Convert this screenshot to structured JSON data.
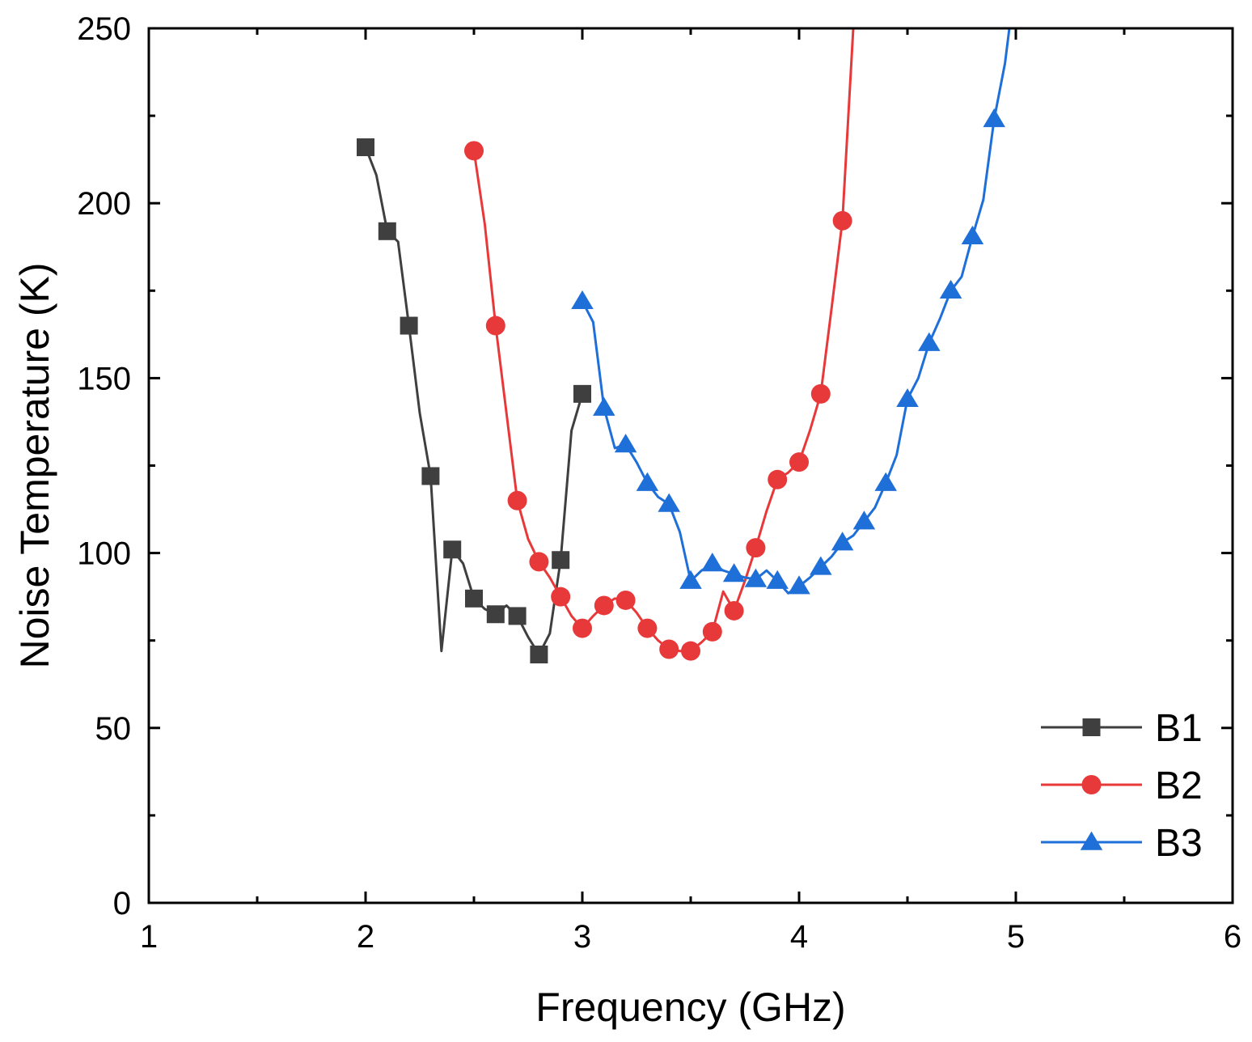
{
  "chart_data": {
    "type": "line",
    "title": "",
    "xlabel": "Frequency (GHz)",
    "ylabel": "Noise Temperature (K)",
    "xlim": [
      1,
      6
    ],
    "ylim": [
      0,
      250
    ],
    "xticks": [
      1,
      2,
      3,
      4,
      5,
      6
    ],
    "xtick_labels": [
      "1",
      "2",
      "3",
      "4",
      "5",
      "6"
    ],
    "yticks": [
      0,
      50,
      100,
      150,
      200,
      250
    ],
    "ytick_labels": [
      "0",
      "50",
      "100",
      "150",
      "200",
      "250"
    ],
    "grid": false,
    "legend_position": "bottom-right",
    "series": [
      {
        "name": "B1",
        "color": "#3f3f3f",
        "marker": "square",
        "markers": {
          "x": [
            2.0,
            2.1,
            2.2,
            2.3,
            2.4,
            2.5,
            2.6,
            2.7,
            2.8,
            2.9,
            3.0
          ],
          "y": [
            216,
            192,
            165,
            122,
            101,
            87,
            82.5,
            82,
            71,
            98,
            145.5
          ]
        },
        "line": {
          "x": [
            2.0,
            2.05,
            2.1,
            2.15,
            2.2,
            2.25,
            2.3,
            2.35,
            2.4,
            2.45,
            2.5,
            2.55,
            2.6,
            2.65,
            2.7,
            2.75,
            2.8,
            2.85,
            2.9,
            2.95,
            3.0
          ],
          "y": [
            216,
            208,
            192,
            189,
            165,
            140,
            122,
            72,
            101,
            97,
            87,
            84,
            82.5,
            85,
            82,
            76,
            71,
            77,
            98,
            135,
            145.5
          ]
        }
      },
      {
        "name": "B2",
        "color": "#e8393a",
        "marker": "circle",
        "markers": {
          "x": [
            2.5,
            2.6,
            2.7,
            2.8,
            2.9,
            3.0,
            3.1,
            3.2,
            3.3,
            3.4,
            3.5,
            3.6,
            3.7,
            3.8,
            3.9,
            4.0,
            4.1,
            4.2
          ],
          "y": [
            215,
            165,
            115,
            97.5,
            87.5,
            78.5,
            85,
            86.5,
            78.5,
            72.5,
            72,
            77.5,
            83.5,
            101.5,
            121,
            126,
            145.5,
            195
          ]
        },
        "line": {
          "x": [
            2.5,
            2.55,
            2.6,
            2.65,
            2.7,
            2.75,
            2.8,
            2.85,
            2.9,
            2.95,
            3.0,
            3.05,
            3.1,
            3.15,
            3.2,
            3.25,
            3.3,
            3.35,
            3.4,
            3.45,
            3.5,
            3.55,
            3.6,
            3.65,
            3.7,
            3.75,
            3.8,
            3.85,
            3.9,
            3.95,
            4.0,
            4.05,
            4.1,
            4.15,
            4.2,
            4.25
          ],
          "y": [
            215,
            194,
            165,
            140,
            115,
            104,
            97.5,
            93,
            87.5,
            82,
            78.5,
            82,
            85,
            87,
            86.5,
            83,
            78.5,
            75,
            72.5,
            72,
            72,
            74.5,
            77.5,
            89,
            83.5,
            92,
            101.5,
            112,
            121,
            123,
            126,
            135,
            145.5,
            170,
            195,
            250
          ]
        }
      },
      {
        "name": "B3",
        "color": "#1f6fd8",
        "marker": "triangle",
        "markers": {
          "x": [
            3.0,
            3.1,
            3.2,
            3.3,
            3.4,
            3.5,
            3.6,
            3.7,
            3.8,
            3.9,
            4.0,
            4.1,
            4.2,
            4.3,
            4.4,
            4.5,
            4.6,
            4.7,
            4.8,
            4.9
          ],
          "y": [
            172,
            141.5,
            131,
            120,
            114,
            92,
            97,
            94,
            92.5,
            92,
            90.5,
            96,
            103,
            109,
            120,
            144,
            160,
            175,
            190.5,
            224
          ]
        },
        "line": {
          "x": [
            3.0,
            3.05,
            3.1,
            3.15,
            3.2,
            3.25,
            3.3,
            3.35,
            3.4,
            3.45,
            3.5,
            3.55,
            3.6,
            3.65,
            3.7,
            3.75,
            3.8,
            3.85,
            3.9,
            3.95,
            4.0,
            4.05,
            4.1,
            4.15,
            4.2,
            4.25,
            4.3,
            4.35,
            4.4,
            4.45,
            4.5,
            4.55,
            4.6,
            4.65,
            4.7,
            4.75,
            4.8,
            4.85,
            4.9,
            4.95,
            4.97
          ],
          "y": [
            172,
            166,
            141.5,
            130,
            131,
            126,
            120,
            116,
            114,
            106,
            92,
            95,
            97,
            95,
            94,
            93,
            92.5,
            95,
            92,
            88.5,
            90.5,
            93,
            96,
            99,
            103,
            105,
            109,
            113,
            120,
            128,
            144,
            150,
            160,
            167,
            175,
            179,
            190.5,
            201,
            224,
            240,
            250
          ]
        }
      }
    ]
  }
}
